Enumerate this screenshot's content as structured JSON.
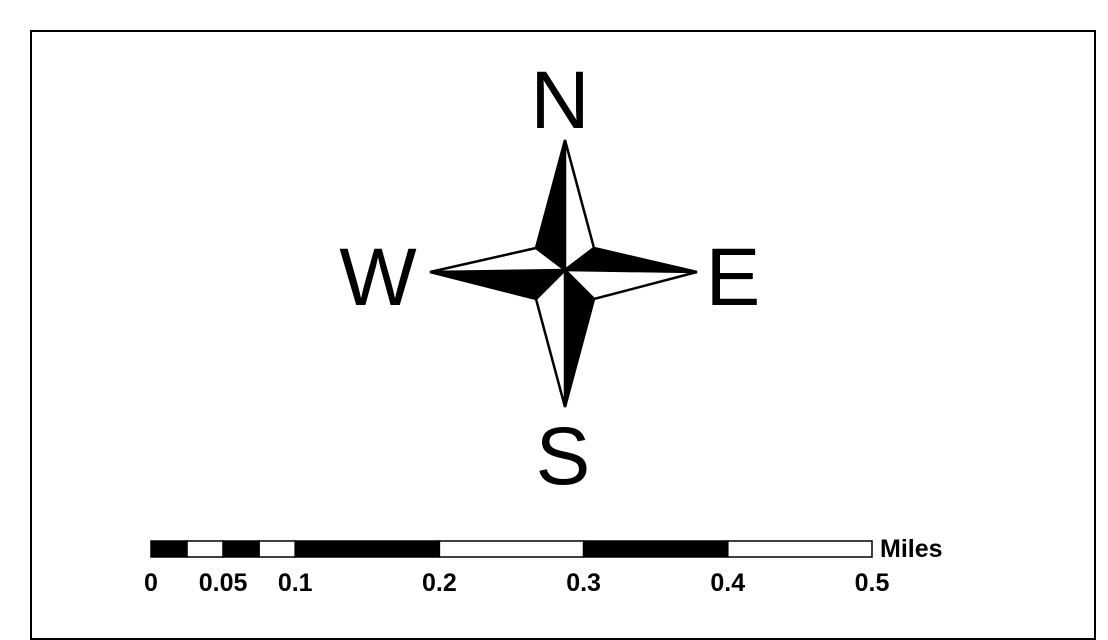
{
  "compass": {
    "north": "N",
    "south": "S",
    "east": "E",
    "west": "W"
  },
  "scale_bar": {
    "unit": "Miles",
    "ticks": [
      "0",
      "0.05",
      "0.1",
      "0.2",
      "0.3",
      "0.4",
      "0.5"
    ],
    "tick_values": [
      0,
      0.05,
      0.1,
      0.2,
      0.3,
      0.4,
      0.5
    ],
    "segments": [
      {
        "from": 0,
        "to": 0.025,
        "fill": "black"
      },
      {
        "from": 0.025,
        "to": 0.05,
        "fill": "white"
      },
      {
        "from": 0.05,
        "to": 0.075,
        "fill": "black"
      },
      {
        "from": 0.075,
        "to": 0.1,
        "fill": "white"
      },
      {
        "from": 0.1,
        "to": 0.2,
        "fill": "black"
      },
      {
        "from": 0.2,
        "to": 0.3,
        "fill": "white"
      },
      {
        "from": 0.3,
        "to": 0.4,
        "fill": "black"
      },
      {
        "from": 0.4,
        "to": 0.5,
        "fill": "white"
      }
    ]
  },
  "colors": {
    "ink": "#000000",
    "paper": "#ffffff"
  }
}
